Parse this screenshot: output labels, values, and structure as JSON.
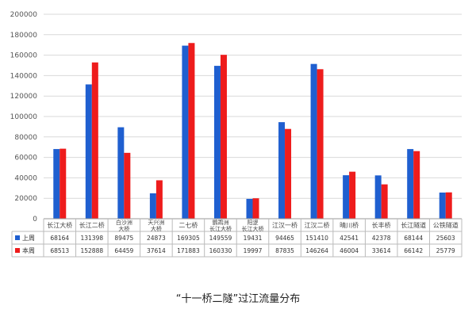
{
  "caption": "“十一桥二隧”过江流量分布",
  "chart_data": {
    "type": "bar",
    "title": "",
    "xlabel": "",
    "ylabel": "",
    "ylim": [
      0,
      200000
    ],
    "yticks": [
      0,
      20000,
      40000,
      60000,
      80000,
      100000,
      120000,
      140000,
      160000,
      180000,
      200000
    ],
    "grid": true,
    "legend": "data-table-left",
    "categories": [
      [
        "长江大桥"
      ],
      [
        "长江二桥"
      ],
      [
        "白沙洲",
        "大桥"
      ],
      [
        "天兴洲",
        "大桥"
      ],
      [
        "二七桥"
      ],
      [
        "鹦鹉洲",
        "长江大桥"
      ],
      [
        "阳逻",
        "长江大桥"
      ],
      [
        "江汉一桥"
      ],
      [
        "江汉二桥"
      ],
      [
        "晴川桥"
      ],
      [
        "长丰桥"
      ],
      [
        "长江隧道"
      ],
      [
        "公铁隧道"
      ]
    ],
    "series": [
      {
        "name": "上周",
        "color": "#1f5fd0",
        "values": [
          68164,
          131398,
          89475,
          24873,
          169305,
          149559,
          19431,
          94465,
          151410,
          42541,
          42378,
          68144,
          25603
        ]
      },
      {
        "name": "本周",
        "color": "#ee1c1c",
        "values": [
          68513,
          152888,
          64459,
          37614,
          171883,
          160330,
          19997,
          87835,
          146264,
          46004,
          33614,
          66142,
          25779
        ]
      }
    ]
  }
}
